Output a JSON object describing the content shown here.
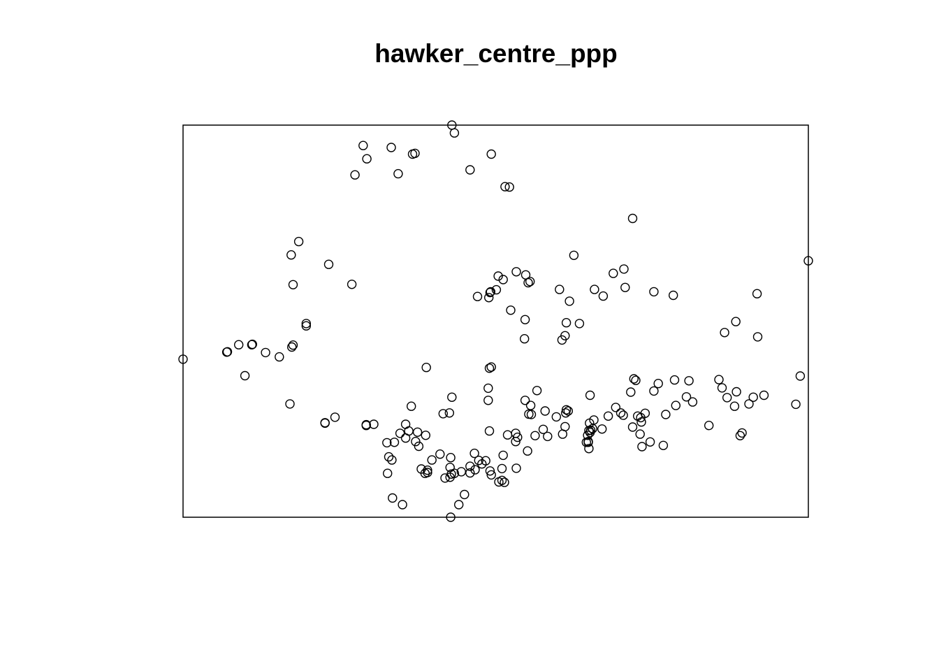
{
  "chart_data": {
    "type": "scatter",
    "title": "hawker_centre_ppp",
    "xlabel": "",
    "ylabel": "",
    "xlim": [
      0,
      1000
    ],
    "ylim": [
      0,
      1000
    ],
    "axes": false,
    "frame": true,
    "grid": false,
    "marker": "open-circle",
    "colors": {
      "marker": "#000000",
      "frame": "#000000",
      "background": "#ffffff"
    },
    "points": [
      [
        430,
        1000
      ],
      [
        434,
        980
      ],
      [
        288,
        948
      ],
      [
        333,
        943
      ],
      [
        367,
        926
      ],
      [
        371,
        928
      ],
      [
        294,
        914
      ],
      [
        275,
        873
      ],
      [
        344,
        876
      ],
      [
        459,
        886
      ],
      [
        493,
        926
      ],
      [
        515,
        843
      ],
      [
        522,
        842
      ],
      [
        719,
        762
      ],
      [
        185,
        703
      ],
      [
        173,
        669
      ],
      [
        233,
        645
      ],
      [
        176,
        593
      ],
      [
        270,
        594
      ],
      [
        625,
        668
      ],
      [
        705,
        633
      ],
      [
        688,
        622
      ],
      [
        707,
        586
      ],
      [
        753,
        575
      ],
      [
        784,
        566
      ],
      [
        918,
        570
      ],
      [
        884,
        499
      ],
      [
        866,
        471
      ],
      [
        919,
        460
      ],
      [
        987,
        360
      ],
      [
        1000,
        654
      ],
      [
        0,
        403
      ],
      [
        70,
        421
      ],
      [
        71,
        422
      ],
      [
        89,
        440
      ],
      [
        110,
        440
      ],
      [
        111,
        441
      ],
      [
        132,
        420
      ],
      [
        154,
        409
      ],
      [
        174,
        434
      ],
      [
        176,
        439
      ],
      [
        197,
        494
      ],
      [
        197,
        488
      ],
      [
        99,
        361
      ],
      [
        171,
        289
      ],
      [
        227,
        241
      ],
      [
        227,
        240
      ],
      [
        243,
        255
      ],
      [
        533,
        626
      ],
      [
        504,
        615
      ],
      [
        491,
        573
      ],
      [
        492,
        575
      ],
      [
        501,
        580
      ],
      [
        471,
        563
      ],
      [
        489,
        560
      ],
      [
        512,
        606
      ],
      [
        548,
        618
      ],
      [
        524,
        528
      ],
      [
        552,
        598
      ],
      [
        555,
        601
      ],
      [
        602,
        581
      ],
      [
        658,
        581
      ],
      [
        672,
        564
      ],
      [
        618,
        551
      ],
      [
        606,
        452
      ],
      [
        611,
        463
      ],
      [
        634,
        494
      ],
      [
        547,
        504
      ],
      [
        613,
        496
      ],
      [
        493,
        383
      ],
      [
        490,
        380
      ],
      [
        488,
        329
      ],
      [
        546,
        455
      ],
      [
        430,
        306
      ],
      [
        426,
        266
      ],
      [
        389,
        382
      ],
      [
        365,
        283
      ],
      [
        375,
        217
      ],
      [
        388,
        209
      ],
      [
        377,
        181
      ],
      [
        398,
        146
      ],
      [
        387,
        112
      ],
      [
        381,
        123
      ],
      [
        416,
        264
      ],
      [
        326,
        190
      ],
      [
        338,
        191
      ],
      [
        293,
        236
      ],
      [
        347,
        214
      ],
      [
        356,
        202
      ],
      [
        356,
        237
      ],
      [
        361,
        220
      ],
      [
        372,
        193
      ],
      [
        293,
        234
      ],
      [
        305,
        237
      ],
      [
        329,
        154
      ],
      [
        334,
        146
      ],
      [
        327,
        112
      ],
      [
        419,
        100
      ],
      [
        427,
        127
      ],
      [
        434,
        112
      ],
      [
        459,
        113
      ],
      [
        473,
        145
      ],
      [
        466,
        163
      ],
      [
        478,
        136
      ],
      [
        484,
        144
      ],
      [
        491,
        118
      ],
      [
        493,
        108
      ],
      [
        510,
        94
      ],
      [
        512,
        158
      ],
      [
        505,
        90
      ],
      [
        510,
        124
      ],
      [
        514,
        89
      ],
      [
        533,
        125
      ],
      [
        428,
        152
      ],
      [
        391,
        120
      ],
      [
        391,
        114
      ],
      [
        335,
        49
      ],
      [
        351,
        32
      ],
      [
        428,
        0
      ],
      [
        441,
        32
      ],
      [
        450,
        58
      ],
      [
        467,
        121
      ],
      [
        459,
        130
      ],
      [
        411,
        161
      ],
      [
        429,
        110
      ],
      [
        427,
        102
      ],
      [
        445,
        116
      ],
      [
        490,
        220
      ],
      [
        532,
        214
      ],
      [
        488,
        298
      ],
      [
        519,
        210
      ],
      [
        532,
        193
      ],
      [
        535,
        204
      ],
      [
        547,
        298
      ],
      [
        556,
        285
      ],
      [
        579,
        271
      ],
      [
        566,
        323
      ],
      [
        557,
        262
      ],
      [
        651,
        311
      ],
      [
        649,
        221
      ],
      [
        650,
        240
      ],
      [
        657,
        248
      ],
      [
        652,
        222
      ],
      [
        680,
        258
      ],
      [
        700,
        266
      ],
      [
        692,
        280
      ],
      [
        721,
        353
      ],
      [
        724,
        349
      ],
      [
        747,
        192
      ],
      [
        753,
        322
      ],
      [
        760,
        341
      ],
      [
        788,
        285
      ],
      [
        786,
        350
      ],
      [
        809,
        348
      ],
      [
        805,
        307
      ],
      [
        815,
        294
      ],
      [
        857,
        351
      ],
      [
        862,
        330
      ],
      [
        885,
        320
      ],
      [
        882,
        283
      ],
      [
        870,
        305
      ],
      [
        841,
        234
      ],
      [
        894,
        215
      ],
      [
        905,
        289
      ],
      [
        980,
        288
      ],
      [
        912,
        306
      ],
      [
        929,
        311
      ],
      [
        891,
        208
      ],
      [
        733,
        243
      ],
      [
        734,
        180
      ],
      [
        649,
        175
      ],
      [
        648,
        193
      ],
      [
        727,
        258
      ],
      [
        732,
        254
      ],
      [
        731,
        212
      ],
      [
        719,
        230
      ],
      [
        704,
        260
      ],
      [
        768,
        183
      ],
      [
        772,
        262
      ],
      [
        739,
        265
      ],
      [
        716,
        319
      ],
      [
        648,
        191
      ],
      [
        647,
        209
      ],
      [
        645,
        191
      ],
      [
        611,
        231
      ],
      [
        612,
        266
      ],
      [
        613,
        274
      ],
      [
        616,
        271
      ],
      [
        597,
        256
      ],
      [
        551,
        169
      ],
      [
        553,
        263
      ],
      [
        576,
        224
      ],
      [
        583,
        206
      ],
      [
        607,
        212
      ],
      [
        651,
        216
      ],
      [
        655,
        226
      ],
      [
        563,
        208
      ],
      [
        670,
        225
      ]
    ]
  }
}
